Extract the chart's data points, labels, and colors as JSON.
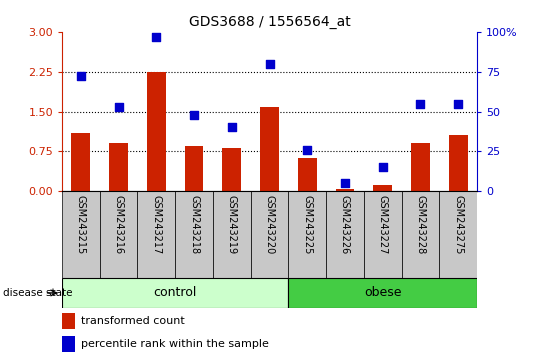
{
  "title": "GDS3688 / 1556564_at",
  "samples": [
    "GSM243215",
    "GSM243216",
    "GSM243217",
    "GSM243218",
    "GSM243219",
    "GSM243220",
    "GSM243225",
    "GSM243226",
    "GSM243227",
    "GSM243228",
    "GSM243275"
  ],
  "transformed_count": [
    1.1,
    0.9,
    2.25,
    0.85,
    0.82,
    1.58,
    0.62,
    0.05,
    0.12,
    0.9,
    1.05
  ],
  "percentile_rank": [
    72,
    53,
    97,
    48,
    40,
    80,
    26,
    5,
    15,
    55,
    55
  ],
  "bar_color": "#cc2200",
  "dot_color": "#0000cc",
  "left_ylim": [
    0,
    3
  ],
  "right_ylim": [
    0,
    100
  ],
  "left_yticks": [
    0,
    0.75,
    1.5,
    2.25,
    3
  ],
  "right_yticks": [
    0,
    25,
    50,
    75,
    100
  ],
  "right_yticklabels": [
    "0",
    "25",
    "50",
    "75",
    "100%"
  ],
  "hlines": [
    0.75,
    1.5,
    2.25
  ],
  "n_control": 6,
  "n_obese": 5,
  "control_color": "#ccffcc",
  "obese_color": "#44cc44",
  "control_label": "control",
  "obese_label": "obese",
  "disease_label": "disease state",
  "legend_bar_label": "transformed count",
  "legend_dot_label": "percentile rank within the sample",
  "bg_color": "#c8c8c8",
  "bar_width": 0.5,
  "dot_size": 40
}
